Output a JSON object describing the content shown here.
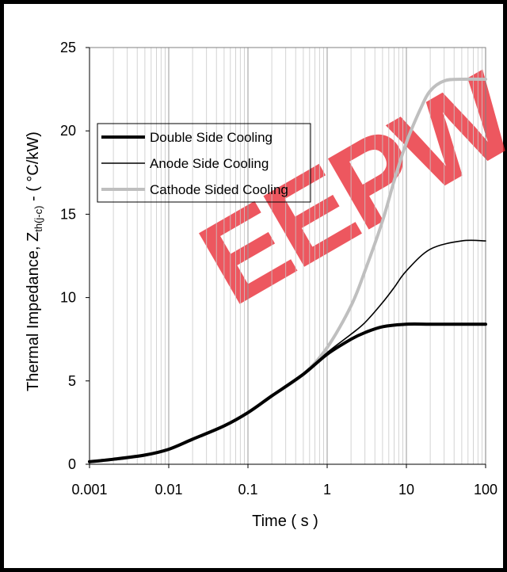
{
  "chart_data": {
    "type": "line",
    "title": "",
    "xlabel": "Time ( s )",
    "ylabel_main": "Thermal Impedance, Z",
    "ylabel_sub": "th(j-c)",
    "ylabel_tail": " - ( °C/kW)",
    "x_scale": "log",
    "xlim": [
      0.001,
      100
    ],
    "ylim": [
      0,
      25
    ],
    "x_ticks": [
      0.001,
      0.01,
      0.1,
      1,
      10,
      100
    ],
    "x_tick_labels": [
      "0.001",
      "0.01",
      "0.1",
      "1",
      "10",
      "100"
    ],
    "y_ticks": [
      0,
      5,
      10,
      15,
      20,
      25
    ],
    "y_tick_labels": [
      "0",
      "5",
      "10",
      "15",
      "20",
      "25"
    ],
    "grid": "vertical log minor and major gridlines",
    "legend_position": "top-left",
    "watermark": "EEPW",
    "series": [
      {
        "name": "Double Side Cooling",
        "color": "#000000",
        "style": "thick",
        "x": [
          0.001,
          0.002,
          0.005,
          0.01,
          0.02,
          0.05,
          0.1,
          0.2,
          0.5,
          1,
          2,
          3,
          5,
          10,
          20,
          50,
          100
        ],
        "y": [
          0.15,
          0.3,
          0.55,
          0.9,
          1.5,
          2.3,
          3.1,
          4.1,
          5.4,
          6.6,
          7.5,
          7.9,
          8.25,
          8.4,
          8.4,
          8.4,
          8.4
        ]
      },
      {
        "name": "Anode Side Cooling",
        "color": "#000000",
        "style": "thin",
        "x": [
          0.001,
          0.002,
          0.005,
          0.01,
          0.02,
          0.05,
          0.1,
          0.2,
          0.5,
          1,
          2,
          3,
          5,
          7,
          10,
          20,
          50,
          100
        ],
        "y": [
          0.15,
          0.3,
          0.55,
          0.9,
          1.5,
          2.3,
          3.1,
          4.1,
          5.4,
          6.7,
          7.8,
          8.5,
          9.7,
          10.6,
          11.6,
          12.9,
          13.4,
          13.4
        ]
      },
      {
        "name": "Cathode Sided Cooling",
        "color": "#bfbfbf",
        "style": "thick",
        "x": [
          0.001,
          0.002,
          0.005,
          0.01,
          0.02,
          0.05,
          0.1,
          0.2,
          0.5,
          1,
          2,
          3,
          5,
          7,
          10,
          15,
          20,
          30,
          50,
          100
        ],
        "y": [
          0.15,
          0.3,
          0.55,
          0.9,
          1.5,
          2.3,
          3.1,
          4.1,
          5.4,
          7.0,
          9.5,
          11.6,
          14.6,
          17.0,
          19.3,
          21.3,
          22.4,
          23.0,
          23.1,
          23.1
        ]
      }
    ]
  }
}
